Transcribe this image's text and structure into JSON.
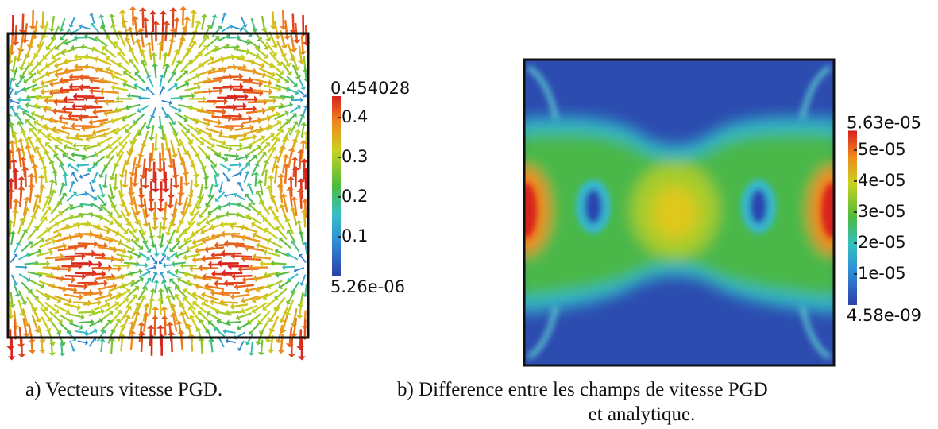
{
  "panels": [
    {
      "caption": "a) Vecteurs vitesse PGD.",
      "colorbar": {
        "max_label": "0.454028",
        "ticks": [
          "0.4",
          "0.3",
          "0.2",
          "0.1"
        ],
        "min_label": "5.26e-06"
      }
    },
    {
      "caption_lines": [
        "b) Difference entre les champs de vitesse PGD",
        "et analytique."
      ],
      "colorbar": {
        "max_label": "5.63e-05",
        "ticks": [
          "5e-05",
          "4e-05",
          "3e-05",
          "2e-05",
          "1e-05"
        ],
        "min_label": "4.58e-09"
      }
    }
  ]
}
